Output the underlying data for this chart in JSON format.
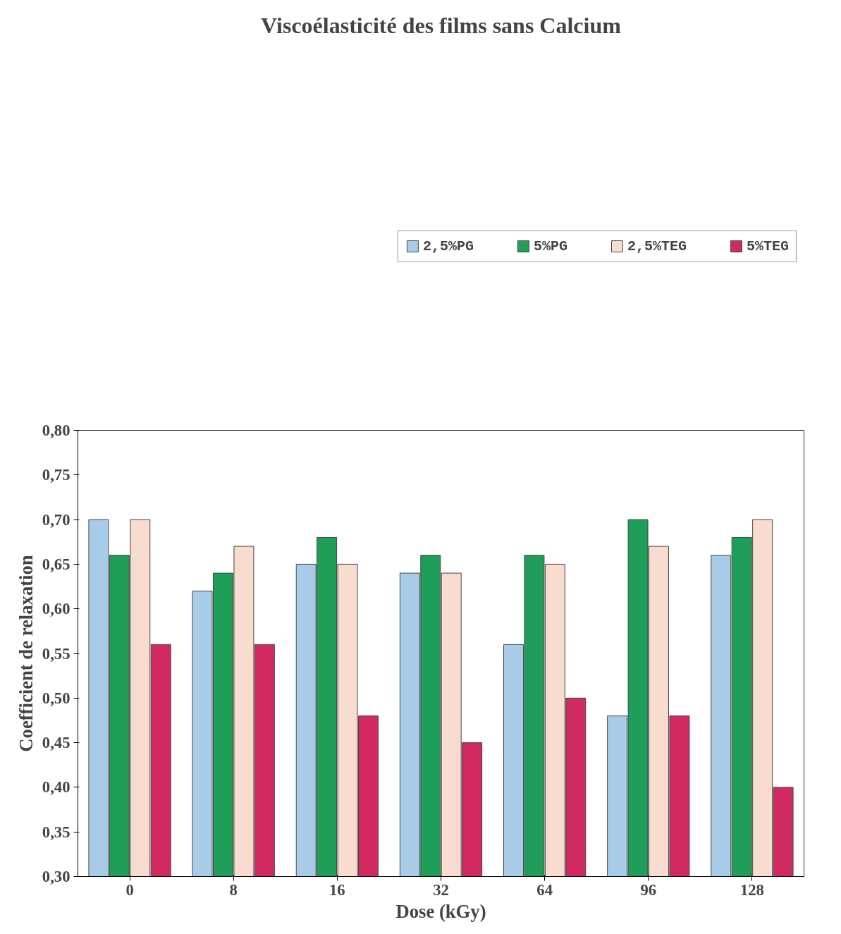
{
  "chart_data": {
    "type": "bar",
    "title": "Viscoélasticité des films sans Calcium",
    "xlabel": "Dose (kGy)",
    "ylabel": "Coefficient de relaxation",
    "categories": [
      "0",
      "8",
      "16",
      "32",
      "64",
      "96",
      "128"
    ],
    "series": [
      {
        "name": "2,5%PG",
        "color": "#a8cce8",
        "values": [
          0.7,
          0.62,
          0.65,
          0.64,
          0.56,
          0.48,
          0.66
        ]
      },
      {
        "name": "5%PG",
        "color": "#1f9e5a",
        "values": [
          0.66,
          0.64,
          0.68,
          0.66,
          0.66,
          0.7,
          0.68
        ]
      },
      {
        "name": "2,5%TEG",
        "color": "#f8dcd0",
        "values": [
          0.7,
          0.67,
          0.65,
          0.64,
          0.65,
          0.67,
          0.7
        ]
      },
      {
        "name": "5%TEG",
        "color": "#d02a60",
        "values": [
          0.56,
          0.56,
          0.48,
          0.45,
          0.5,
          0.48,
          0.4
        ]
      }
    ],
    "ylim": [
      0.3,
      0.8
    ],
    "yticks": [
      {
        "value": 0.3,
        "label": "0,30"
      },
      {
        "value": 0.35,
        "label": "0,35"
      },
      {
        "value": 0.4,
        "label": "0,40"
      },
      {
        "value": 0.45,
        "label": "0,45"
      },
      {
        "value": 0.5,
        "label": "0,50"
      },
      {
        "value": 0.55,
        "label": "0,55"
      },
      {
        "value": 0.6,
        "label": "0,60"
      },
      {
        "value": 0.65,
        "label": "0,65"
      },
      {
        "value": 0.7,
        "label": "0,70"
      },
      {
        "value": 0.75,
        "label": "0,75"
      },
      {
        "value": 0.8,
        "label": "0,80"
      }
    ],
    "grid": false,
    "legend": "top"
  }
}
